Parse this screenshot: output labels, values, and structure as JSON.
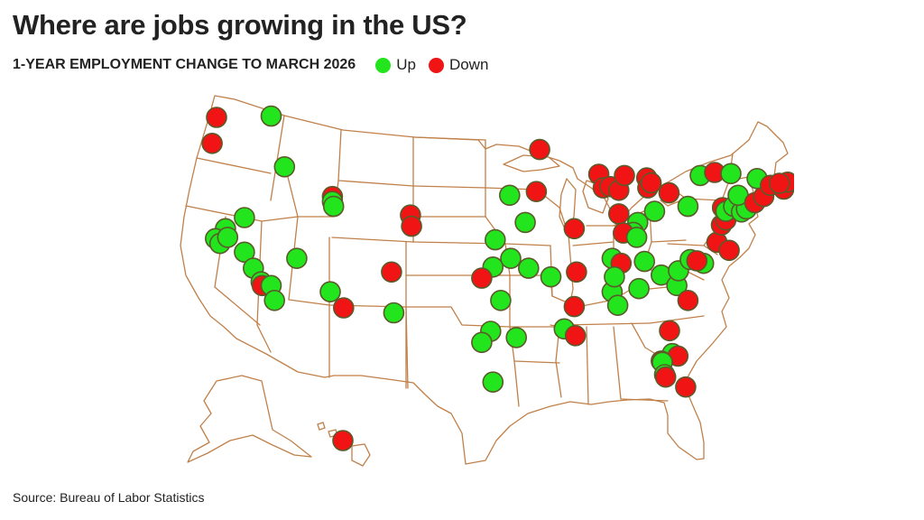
{
  "title": "Where are jobs growing in the US?",
  "subtitle": "1-YEAR EMPLOYMENT CHANGE TO MARCH 2026",
  "legend": [
    {
      "label": "Up",
      "color": "#22e51e"
    },
    {
      "label": "Down",
      "color": "#f01414"
    }
  ],
  "source": "Source: Bureau of Labor Statistics",
  "colors": {
    "up": "#22e51e",
    "down": "#f01414",
    "state_border": "#c0804a",
    "marker_stroke": "#5a5a2a"
  },
  "map_data": {
    "region": "United States",
    "markers": [
      {
        "status": "down",
        "lon": -122.3,
        "lat": 47.6
      },
      {
        "status": "down",
        "lon": -122.7,
        "lat": 45.5
      },
      {
        "status": "up",
        "lon": -117.4,
        "lat": 47.7
      },
      {
        "status": "up",
        "lon": -116.2,
        "lat": 43.6
      },
      {
        "status": "up",
        "lon": -121.5,
        "lat": 38.6
      },
      {
        "status": "up",
        "lon": -122.4,
        "lat": 37.8
      },
      {
        "status": "up",
        "lon": -122.0,
        "lat": 37.4
      },
      {
        "status": "up",
        "lon": -121.3,
        "lat": 37.9
      },
      {
        "status": "up",
        "lon": -119.8,
        "lat": 39.5
      },
      {
        "status": "up",
        "lon": -119.8,
        "lat": 36.7
      },
      {
        "status": "up",
        "lon": -119.0,
        "lat": 35.4
      },
      {
        "status": "up",
        "lon": -118.3,
        "lat": 34.3
      },
      {
        "status": "down",
        "lon": -118.2,
        "lat": 34.0
      },
      {
        "status": "up",
        "lon": -117.4,
        "lat": 34.0
      },
      {
        "status": "up",
        "lon": -117.1,
        "lat": 32.8
      },
      {
        "status": "up",
        "lon": -115.1,
        "lat": 36.2
      },
      {
        "status": "down",
        "lon": -111.9,
        "lat": 41.2
      },
      {
        "status": "up",
        "lon": -111.9,
        "lat": 40.8
      },
      {
        "status": "up",
        "lon": -111.8,
        "lat": 40.4
      },
      {
        "status": "up",
        "lon": -112.1,
        "lat": 33.5
      },
      {
        "status": "down",
        "lon": -110.9,
        "lat": 32.2
      },
      {
        "status": "down",
        "lon": -104.9,
        "lat": 39.7
      },
      {
        "status": "down",
        "lon": -104.8,
        "lat": 38.8
      },
      {
        "status": "down",
        "lon": -106.6,
        "lat": 35.1
      },
      {
        "status": "up",
        "lon": -106.4,
        "lat": 31.8
      },
      {
        "status": "up",
        "lon": -96.0,
        "lat": 41.3
      },
      {
        "status": "down",
        "lon": -93.6,
        "lat": 41.6
      },
      {
        "status": "down",
        "lon": -93.3,
        "lat": 45.0
      },
      {
        "status": "up",
        "lon": -94.6,
        "lat": 39.1
      },
      {
        "status": "up",
        "lon": -97.3,
        "lat": 37.7
      },
      {
        "status": "down",
        "lon": -90.2,
        "lat": 38.6
      },
      {
        "status": "up",
        "lon": -97.5,
        "lat": 35.5
      },
      {
        "status": "up",
        "lon": -95.9,
        "lat": 36.2
      },
      {
        "status": "down",
        "lon": -98.5,
        "lat": 34.6
      },
      {
        "status": "up",
        "lon": -94.3,
        "lat": 35.4
      },
      {
        "status": "up",
        "lon": -92.3,
        "lat": 34.7
      },
      {
        "status": "down",
        "lon": -90.0,
        "lat": 35.1
      },
      {
        "status": "up",
        "lon": -96.8,
        "lat": 32.8
      },
      {
        "status": "up",
        "lon": -97.7,
        "lat": 30.3
      },
      {
        "status": "up",
        "lon": -98.5,
        "lat": 29.4
      },
      {
        "status": "up",
        "lon": -95.4,
        "lat": 29.8
      },
      {
        "status": "up",
        "lon": -97.5,
        "lat": 26.2
      },
      {
        "status": "down",
        "lon": -90.2,
        "lat": 32.3
      },
      {
        "status": "up",
        "lon": -91.1,
        "lat": 30.5
      },
      {
        "status": "down",
        "lon": -90.1,
        "lat": 29.95
      },
      {
        "status": "down",
        "lon": -88.0,
        "lat": 43.0
      },
      {
        "status": "down",
        "lon": -87.6,
        "lat": 41.9
      },
      {
        "status": "down",
        "lon": -87.0,
        "lat": 42.0
      },
      {
        "status": "down",
        "lon": -86.2,
        "lat": 41.7
      },
      {
        "status": "down",
        "lon": -85.7,
        "lat": 42.9
      },
      {
        "status": "down",
        "lon": -83.7,
        "lat": 42.7
      },
      {
        "status": "down",
        "lon": -83.6,
        "lat": 41.9
      },
      {
        "status": "down",
        "lon": -83.3,
        "lat": 42.3
      },
      {
        "status": "down",
        "lon": -81.7,
        "lat": 41.5
      },
      {
        "status": "up",
        "lon": -80.0,
        "lat": 40.4
      },
      {
        "status": "down",
        "lon": -86.2,
        "lat": 39.8
      },
      {
        "status": "up",
        "lon": -84.5,
        "lat": 39.1
      },
      {
        "status": "up",
        "lon": -83.0,
        "lat": 40.0
      },
      {
        "status": "up",
        "lon": -84.9,
        "lat": 38.3
      },
      {
        "status": "down",
        "lon": -85.8,
        "lat": 38.25
      },
      {
        "status": "up",
        "lon": -84.6,
        "lat": 37.9
      },
      {
        "status": "up",
        "lon": -86.8,
        "lat": 36.2
      },
      {
        "status": "down",
        "lon": -86.0,
        "lat": 35.8
      },
      {
        "status": "up",
        "lon": -83.9,
        "lat": 35.95
      },
      {
        "status": "up",
        "lon": -86.8,
        "lat": 33.5
      },
      {
        "status": "up",
        "lon": -86.6,
        "lat": 34.7
      },
      {
        "status": "up",
        "lon": -86.3,
        "lat": 32.4
      },
      {
        "status": "up",
        "lon": -84.4,
        "lat": 33.75
      },
      {
        "status": "up",
        "lon": -82.4,
        "lat": 34.85
      },
      {
        "status": "up",
        "lon": -81.0,
        "lat": 34.0
      },
      {
        "status": "up",
        "lon": -80.85,
        "lat": 35.2
      },
      {
        "status": "up",
        "lon": -79.8,
        "lat": 36.1
      },
      {
        "status": "up",
        "lon": -78.6,
        "lat": 35.8
      },
      {
        "status": "down",
        "lon": -79.2,
        "lat": 36.0
      },
      {
        "status": "down",
        "lon": -80.0,
        "lat": 32.8
      },
      {
        "status": "down",
        "lon": -81.65,
        "lat": 30.35
      },
      {
        "status": "up",
        "lon": -81.4,
        "lat": 28.5
      },
      {
        "status": "down",
        "lon": -80.9,
        "lat": 28.3
      },
      {
        "status": "down",
        "lon": -82.4,
        "lat": 27.9
      },
      {
        "status": "up",
        "lon": -82.3,
        "lat": 27.8
      },
      {
        "status": "up",
        "lon": -82.1,
        "lat": 26.8
      },
      {
        "status": "down",
        "lon": -82.0,
        "lat": 26.6
      },
      {
        "status": "down",
        "lon": -80.2,
        "lat": 25.8
      },
      {
        "status": "down",
        "lon": -77.4,
        "lat": 37.5
      },
      {
        "status": "down",
        "lon": -76.3,
        "lat": 36.85
      },
      {
        "status": "down",
        "lon": -77.0,
        "lat": 38.9
      },
      {
        "status": "down",
        "lon": -76.6,
        "lat": 39.3
      },
      {
        "status": "down",
        "lon": -76.9,
        "lat": 40.3
      },
      {
        "status": "up",
        "lon": -76.6,
        "lat": 40.0
      },
      {
        "status": "up",
        "lon": -75.9,
        "lat": 40.4
      },
      {
        "status": "up",
        "lon": -75.2,
        "lat": 39.95
      },
      {
        "status": "up",
        "lon": -74.75,
        "lat": 40.2
      },
      {
        "status": "up",
        "lon": -75.5,
        "lat": 41.3
      },
      {
        "status": "down",
        "lon": -74.0,
        "lat": 40.7
      },
      {
        "status": "down",
        "lon": -73.2,
        "lat": 41.2
      },
      {
        "status": "up",
        "lon": -78.9,
        "lat": 42.9
      },
      {
        "status": "down",
        "lon": -77.6,
        "lat": 43.15
      },
      {
        "status": "up",
        "lon": -76.15,
        "lat": 43.05
      },
      {
        "status": "up",
        "lon": -73.8,
        "lat": 42.65
      },
      {
        "status": "down",
        "lon": -72.6,
        "lat": 42.1
      },
      {
        "status": "down",
        "lon": -71.4,
        "lat": 41.8
      },
      {
        "status": "down",
        "lon": -71.06,
        "lat": 42.36
      },
      {
        "status": "down",
        "lon": -71.8,
        "lat": 42.27
      },
      {
        "status": "down",
        "lon": -159.4,
        "lat": 21.2
      }
    ]
  }
}
